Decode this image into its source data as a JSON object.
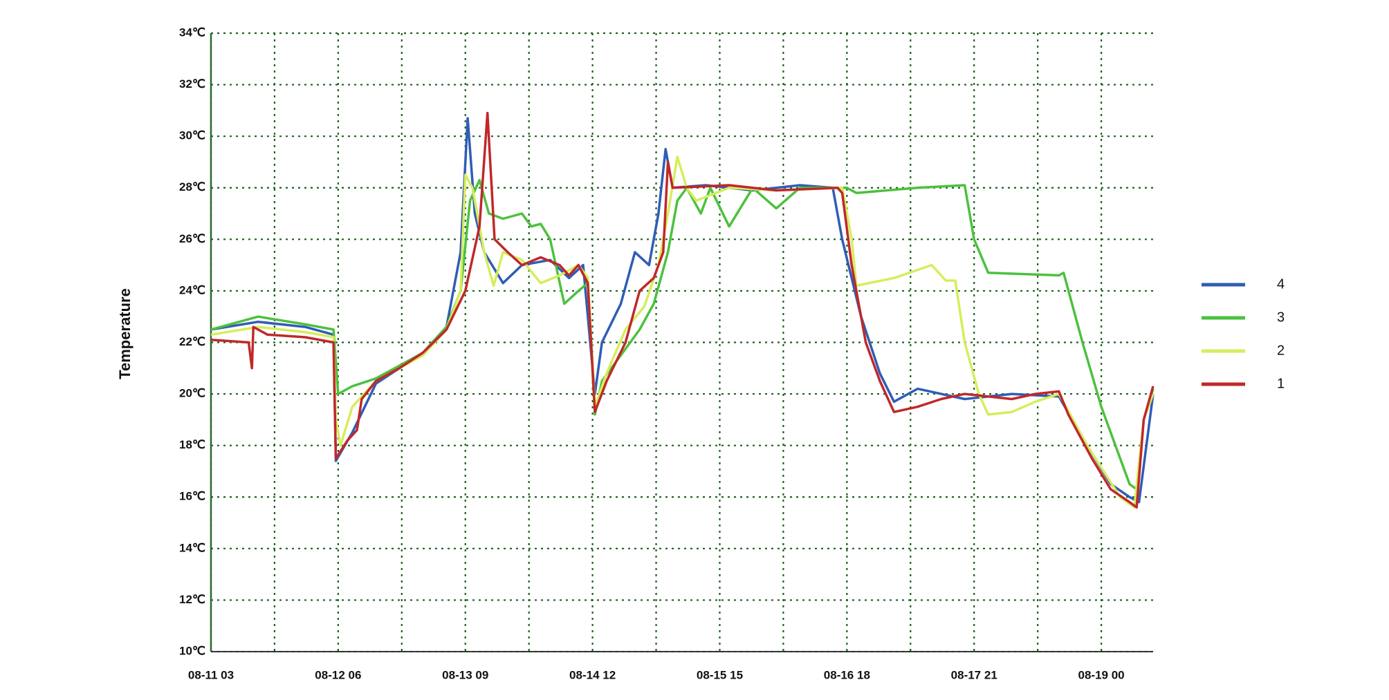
{
  "chart_data": {
    "type": "line",
    "y_label": "Temperature",
    "xlim": [
      0,
      200
    ],
    "xticks": [
      {
        "value": 0,
        "label": "08-11 03"
      },
      {
        "value": 27,
        "label": "08-12 06"
      },
      {
        "value": 54,
        "label": "08-13 09"
      },
      {
        "value": 81,
        "label": "08-14 12"
      },
      {
        "value": 108,
        "label": "08-15 15"
      },
      {
        "value": 135,
        "label": "08-16 18"
      },
      {
        "value": 162,
        "label": "08-17 21"
      },
      {
        "value": 189,
        "label": "08-19 00"
      }
    ],
    "xminor": [
      13.5,
      40.5,
      67.5,
      94.5,
      121.5,
      148.5,
      175.5
    ],
    "ylim": [
      10,
      34
    ],
    "yticks": [
      {
        "value": 10,
        "label": "10℃"
      },
      {
        "value": 12,
        "label": "12℃"
      },
      {
        "value": 14,
        "label": "14℃"
      },
      {
        "value": 16,
        "label": "16℃"
      },
      {
        "value": 18,
        "label": "18℃"
      },
      {
        "value": 20,
        "label": "20℃"
      },
      {
        "value": 22,
        "label": "22℃"
      },
      {
        "value": 24,
        "label": "24℃"
      },
      {
        "value": 26,
        "label": "26℃"
      },
      {
        "value": 28,
        "label": "28℃"
      },
      {
        "value": 30,
        "label": "30℃"
      },
      {
        "value": 32,
        "label": "32℃"
      },
      {
        "value": 34,
        "label": "34℃"
      }
    ],
    "grid": true,
    "series": [
      {
        "name": "4",
        "color": "#2f5db5",
        "x": [
          0,
          10,
          20,
          26,
          26.5,
          30,
          35,
          45,
          50,
          53,
          54.5,
          56,
          58,
          62,
          66,
          72,
          76,
          79,
          81.5,
          83,
          87,
          90,
          93,
          95,
          96.5,
          98,
          105,
          115,
          125,
          132,
          134,
          138,
          142,
          145,
          150,
          160,
          170,
          180,
          186,
          191,
          195,
          197,
          200
        ],
        "values": [
          22.5,
          22.8,
          22.6,
          22.3,
          17.4,
          18.5,
          20.4,
          21.6,
          22.6,
          25.5,
          30.7,
          27,
          25.5,
          24.3,
          25,
          25.2,
          24.5,
          25,
          20,
          22,
          23.5,
          25.5,
          25,
          27,
          29.5,
          28,
          28.1,
          27.9,
          28.1,
          28,
          26,
          23,
          20.8,
          19.7,
          20.2,
          19.8,
          20,
          19.9,
          18,
          16.5,
          16,
          15.8,
          20
        ]
      },
      {
        "name": "3",
        "color": "#4cc13e",
        "x": [
          0,
          10,
          20,
          26,
          27,
          30,
          35,
          40,
          45,
          50,
          53,
          55,
          57,
          59,
          62,
          66,
          68,
          70,
          72,
          75,
          78,
          80,
          81.5,
          83,
          87,
          91,
          94,
          97,
          99,
          101,
          104,
          106,
          110,
          115,
          120,
          125,
          135,
          137,
          150,
          160,
          162,
          165,
          180,
          181,
          185,
          189,
          192,
          195,
          196.5,
          198,
          200
        ],
        "values": [
          22.5,
          23,
          22.7,
          22.5,
          20,
          20.3,
          20.6,
          21.1,
          21.6,
          22.6,
          24,
          27.5,
          28.3,
          27,
          26.8,
          27,
          26.5,
          26.6,
          26,
          23.5,
          24,
          24.3,
          19.2,
          20.5,
          21.5,
          22.5,
          23.5,
          25.5,
          27.5,
          28,
          27,
          28,
          26.5,
          28,
          27.2,
          28,
          28,
          27.8,
          28,
          28.1,
          26,
          24.7,
          24.6,
          24.7,
          22,
          19.5,
          18,
          16.5,
          16.3,
          19,
          20.2
        ]
      },
      {
        "name": "2",
        "color": "#d6ed5c",
        "x": [
          0,
          10,
          20,
          26,
          26.5,
          27.5,
          30,
          35,
          45,
          50,
          53,
          54,
          55.5,
          58,
          60,
          62,
          66,
          70,
          74,
          78,
          80,
          81.5,
          84,
          88,
          92,
          95,
          97,
          99,
          101,
          103,
          110,
          120,
          134,
          136,
          137,
          145,
          153,
          156,
          158,
          160,
          163,
          165,
          170,
          175,
          180,
          186,
          193,
          196,
          198,
          200
        ],
        "values": [
          22.3,
          22.6,
          22.4,
          22.2,
          19,
          18,
          19.5,
          20.5,
          21.5,
          22.5,
          24,
          28.5,
          28,
          25.5,
          24.2,
          25.5,
          25.2,
          24.3,
          24.6,
          25,
          24.5,
          19.5,
          20.8,
          22.5,
          23.4,
          25,
          27,
          29.2,
          28,
          27.5,
          28,
          27.9,
          28,
          26,
          24.2,
          24.5,
          25,
          24.4,
          24.4,
          22,
          20,
          19.2,
          19.3,
          19.7,
          20,
          18,
          16,
          15.6,
          19,
          20
        ]
      },
      {
        "name": "1",
        "color": "#c0282a",
        "x": [
          0,
          8,
          8.7,
          9,
          12,
          20,
          26,
          26.5,
          29,
          31,
          32,
          35,
          40,
          45,
          50,
          54,
          57,
          58.7,
          60.2,
          63,
          66,
          70,
          74,
          76,
          78,
          80,
          81.5,
          84,
          88,
          91,
          94,
          96,
          97,
          98,
          110,
          120,
          133,
          134,
          136,
          139,
          142,
          145,
          150,
          155,
          160,
          165,
          170,
          175,
          180,
          182,
          187,
          191,
          195,
          196.5,
          198,
          200
        ],
        "values": [
          22.1,
          22,
          21,
          22.6,
          22.3,
          22.2,
          22,
          17.5,
          18.2,
          18.6,
          19.8,
          20.5,
          21,
          21.6,
          22.5,
          24,
          26.5,
          30.9,
          26,
          25.5,
          25,
          25.3,
          25,
          24.6,
          25,
          24.3,
          19.3,
          20.5,
          22,
          24,
          24.5,
          25.5,
          29,
          28,
          28.1,
          27.9,
          28,
          27.8,
          25,
          22,
          20.5,
          19.3,
          19.5,
          19.8,
          20,
          19.9,
          19.8,
          20,
          20.1,
          19.2,
          17.5,
          16.3,
          15.8,
          15.6,
          19,
          20.3
        ]
      }
    ]
  }
}
